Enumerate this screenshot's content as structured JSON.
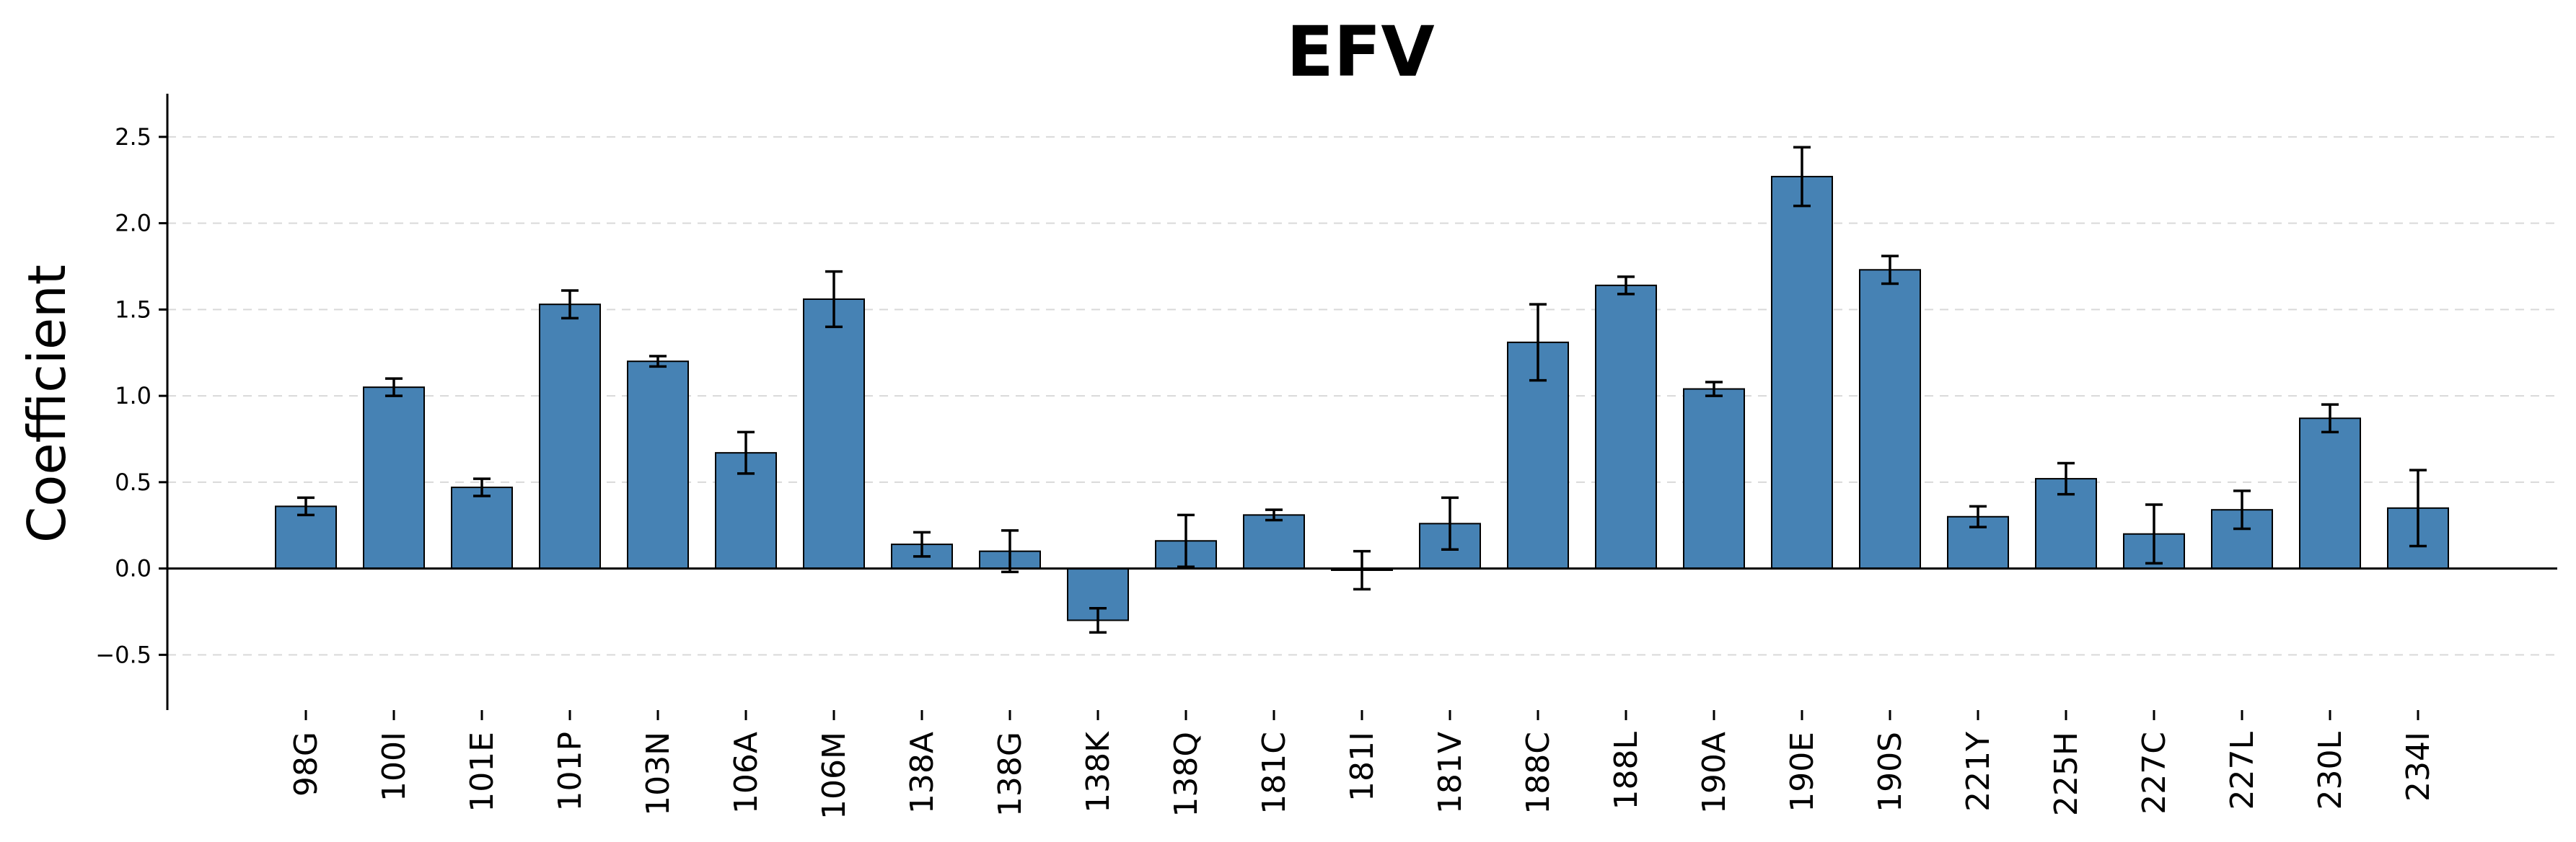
{
  "chart_data": {
    "type": "bar",
    "title": "EFV",
    "xlabel": "",
    "ylabel": "Coefficient",
    "ylim": [
      -0.82,
      2.75
    ],
    "yticks": [
      -0.5,
      0.0,
      0.5,
      1.0,
      1.5,
      2.0,
      2.5
    ],
    "ytick_labels": [
      "−0.5",
      "0.0",
      "0.5",
      "1.0",
      "1.5",
      "2.0",
      "2.5"
    ],
    "grid": true,
    "categories": [
      "98G",
      "100I",
      "101E",
      "101P",
      "103N",
      "106A",
      "106M",
      "138A",
      "138G",
      "138K",
      "138Q",
      "181C",
      "181I",
      "181V",
      "188C",
      "188L",
      "190A",
      "190E",
      "190S",
      "221Y",
      "225H",
      "227C",
      "227L",
      "230L",
      "234I"
    ],
    "values": [
      0.36,
      1.05,
      0.47,
      1.53,
      1.2,
      0.67,
      1.56,
      0.14,
      0.1,
      -0.3,
      0.16,
      0.31,
      -0.01,
      0.26,
      1.31,
      1.64,
      1.04,
      2.27,
      1.73,
      0.3,
      0.52,
      0.2,
      0.34,
      0.87,
      0.35
    ],
    "errors": [
      0.05,
      0.05,
      0.05,
      0.08,
      0.03,
      0.12,
      0.16,
      0.07,
      0.12,
      0.07,
      0.15,
      0.03,
      0.11,
      0.15,
      0.22,
      0.05,
      0.04,
      0.17,
      0.08,
      0.06,
      0.09,
      0.17,
      0.11,
      0.08,
      0.22
    ],
    "colors": {
      "bar": "#4682b4",
      "edge": "#000000",
      "grid": "#d9d9d9"
    }
  }
}
